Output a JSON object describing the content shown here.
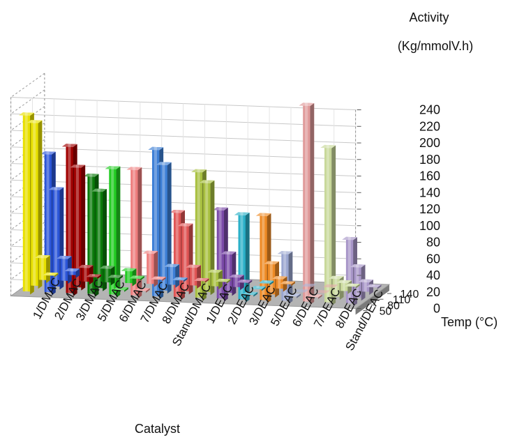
{
  "chart_data": {
    "type": "bar-3d",
    "title_line1": "Activity",
    "title_line2": "(Kg/mmolV.h)",
    "xlabel": "Catalyst",
    "zlabel": "Temp (°C)",
    "ylim": [
      0,
      240
    ],
    "ticks": [
      "0",
      "20",
      "40",
      "60",
      "80",
      "100",
      "120",
      "140",
      "160",
      "180",
      "200",
      "220",
      "240"
    ],
    "categories": [
      "1/DMAC",
      "2/DMAC",
      "3/DMAC",
      "5/DMAC",
      "6/DMAC",
      "7/DMAC",
      "8/DMAC",
      "Stand/DMAC",
      "1/DEAC",
      "2/DEAC",
      "3/DEAC",
      "5/DEAC",
      "6/DEAC",
      "7/DEAC",
      "8/DEAC",
      "Stand/DEAC"
    ],
    "temps": [
      "50",
      "80",
      "110",
      "140"
    ],
    "colors": [
      "#e8e000",
      "#2b55d8",
      "#a00000",
      "#0a7a0a",
      "#22cc22",
      "#ee7d7d",
      "#3d7fd6",
      "#e05555",
      "#a8c040",
      "#7a4aa8",
      "#2ab0c8",
      "#ee8a25",
      "#9aa6d0",
      "#e09a9a",
      "#c8d89a",
      "#a896c8"
    ],
    "series": [
      {
        "name": "50",
        "values": [
          216,
          170,
          180,
          145,
          155,
          155,
          180,
          105,
          155,
          110,
          105,
          105,
          60,
          240,
          190,
          80
        ]
      },
      {
        "name": "80",
        "values": [
          200,
          120,
          148,
          120,
          2,
          2,
          155,
          82,
          135,
          50,
          2,
          40,
          2,
          2,
          25,
          40
        ]
      },
      {
        "name": "110",
        "values": [
          30,
          30,
          20,
          20,
          18,
          40,
          25,
          25,
          20,
          15,
          2,
          15,
          0,
          0,
          13,
          15
        ]
      },
      {
        "name": "140",
        "values": [
          2,
          8,
          2,
          2,
          2,
          2,
          2,
          2,
          2,
          2,
          2,
          2,
          0,
          0,
          2,
          2
        ]
      }
    ]
  }
}
